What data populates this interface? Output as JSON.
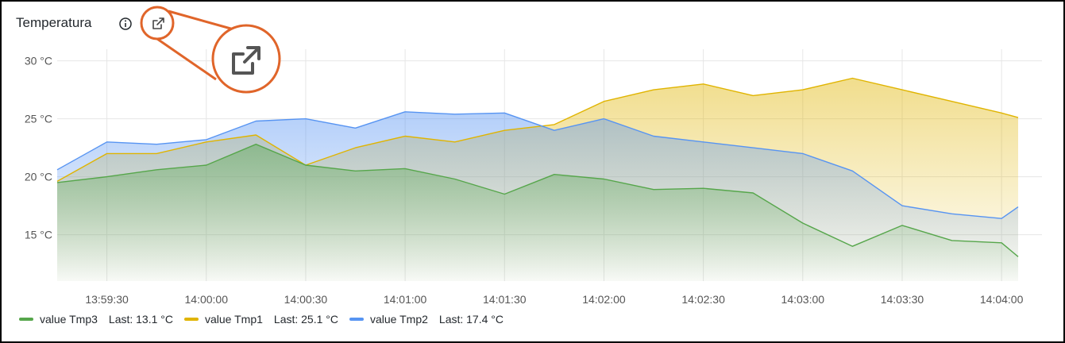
{
  "panel": {
    "title": "Temperatura"
  },
  "icons": {
    "info": "info-circle-icon",
    "external_link": "external-link-icon"
  },
  "colors": {
    "tmp3": "#56a64b",
    "tmp1": "#e0b400",
    "tmp2": "#5794f2",
    "callout": "#e0652a",
    "grid": "#e6e6e6",
    "axis_text": "#555555"
  },
  "legend": [
    {
      "name": "value Tmp3",
      "last": "Last: 13.1 °C",
      "color": "#56a64b"
    },
    {
      "name": "value Tmp1",
      "last": "Last: 25.1 °C",
      "color": "#e0b400"
    },
    {
      "name": "value Tmp2",
      "last": "Last: 17.4 °C",
      "color": "#5794f2"
    }
  ],
  "chart_data": {
    "type": "area",
    "title": "Temperatura",
    "unit": "°C",
    "ylim": [
      11,
      31
    ],
    "y_ticks": [
      30,
      25,
      20,
      15
    ],
    "y_tick_labels": [
      "30 °C",
      "25 °C",
      "20 °C",
      "15 °C"
    ],
    "xlim": [
      "13:59:15",
      "14:04:05"
    ],
    "x_tick_labels": [
      "13:59:30",
      "14:00:00",
      "14:00:30",
      "14:01:00",
      "14:01:30",
      "14:02:00",
      "14:02:30",
      "14:03:00",
      "14:03:30",
      "14:04:00"
    ],
    "grid": true,
    "legend_position": "bottom-left",
    "x": [
      "13:59:15",
      "13:59:30",
      "13:59:45",
      "14:00:00",
      "14:00:15",
      "14:00:30",
      "14:00:45",
      "14:01:00",
      "14:01:15",
      "14:01:30",
      "14:01:45",
      "14:02:00",
      "14:02:15",
      "14:02:30",
      "14:02:45",
      "14:03:00",
      "14:03:15",
      "14:03:30",
      "14:03:45",
      "14:04:00",
      "14:04:05"
    ],
    "series": [
      {
        "name": "value Tmp3",
        "values": [
          19.5,
          20.0,
          20.6,
          21.0,
          22.8,
          21.0,
          20.5,
          20.7,
          19.8,
          18.5,
          20.2,
          19.8,
          18.9,
          19.0,
          18.6,
          16.0,
          14.0,
          15.8,
          14.5,
          14.3,
          13.1
        ]
      },
      {
        "name": "value Tmp1",
        "values": [
          19.6,
          22.0,
          22.0,
          23.0,
          23.6,
          21.0,
          22.5,
          23.5,
          23.0,
          24.0,
          24.5,
          26.5,
          27.5,
          28.0,
          27.0,
          27.5,
          28.5,
          27.5,
          26.5,
          25.5,
          25.1
        ]
      },
      {
        "name": "value Tmp2",
        "values": [
          20.6,
          23.0,
          22.8,
          23.2,
          24.8,
          25.0,
          24.2,
          25.6,
          25.4,
          25.5,
          24.0,
          25.0,
          23.5,
          23.0,
          22.5,
          22.0,
          20.5,
          17.5,
          16.8,
          16.4,
          17.4
        ]
      }
    ]
  }
}
